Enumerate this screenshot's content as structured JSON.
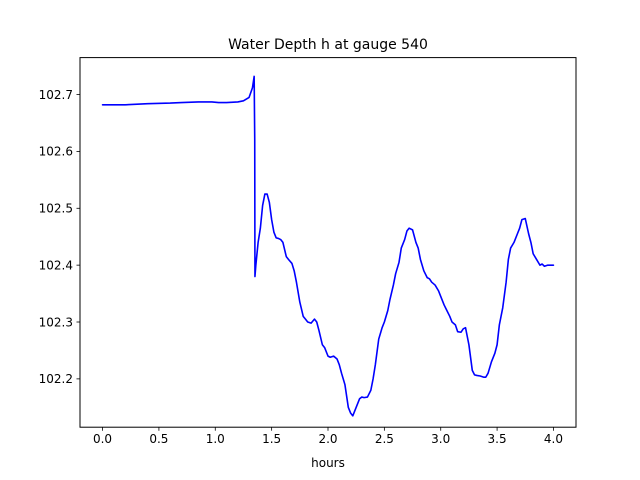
{
  "chart_data": {
    "type": "line",
    "title": "Water Depth h at gauge 540",
    "xlabel": "hours",
    "ylabel": "",
    "xlim": [
      -0.2,
      4.2
    ],
    "ylim": [
      102.115,
      102.765
    ],
    "xticks": [
      0.0,
      0.5,
      1.0,
      1.5,
      2.0,
      2.5,
      3.0,
      3.5,
      4.0
    ],
    "xtick_labels": [
      "0.0",
      "0.5",
      "1.0",
      "1.5",
      "2.0",
      "2.5",
      "3.0",
      "3.5",
      "4.0"
    ],
    "yticks": [
      102.2,
      102.3,
      102.4,
      102.5,
      102.6,
      102.7
    ],
    "ytick_labels": [
      "102.2",
      "102.3",
      "102.4",
      "102.5",
      "102.6",
      "102.7"
    ],
    "grid": false,
    "series": [
      {
        "color": "#0000ff",
        "x": [
          0.0,
          0.2,
          0.4,
          0.6,
          0.7,
          0.85,
          0.97,
          1.03,
          1.1,
          1.2,
          1.25,
          1.3,
          1.33,
          1.345,
          1.35,
          1.352,
          1.36,
          1.38,
          1.4,
          1.42,
          1.44,
          1.46,
          1.48,
          1.5,
          1.52,
          1.54,
          1.56,
          1.58,
          1.6,
          1.63,
          1.65,
          1.68,
          1.7,
          1.72,
          1.75,
          1.78,
          1.8,
          1.82,
          1.85,
          1.88,
          1.9,
          1.92,
          1.95,
          1.97,
          2.0,
          2.02,
          2.05,
          2.08,
          2.1,
          2.12,
          2.15,
          2.18,
          2.2,
          2.22,
          2.25,
          2.28,
          2.3,
          2.32,
          2.35,
          2.38,
          2.4,
          2.42,
          2.45,
          2.48,
          2.5,
          2.53,
          2.55,
          2.58,
          2.6,
          2.63,
          2.65,
          2.68,
          2.7,
          2.72,
          2.75,
          2.78,
          2.8,
          2.82,
          2.85,
          2.88,
          2.9,
          2.92,
          2.95,
          2.98,
          3.0,
          3.03,
          3.05,
          3.08,
          3.1,
          3.13,
          3.15,
          3.18,
          3.2,
          3.22,
          3.25,
          3.28,
          3.3,
          3.32,
          3.35,
          3.38,
          3.4,
          3.42,
          3.45,
          3.48,
          3.5,
          3.52,
          3.55,
          3.58,
          3.6,
          3.62,
          3.65,
          3.68,
          3.7,
          3.72,
          3.75,
          3.78,
          3.8,
          3.82,
          3.85,
          3.88,
          3.9,
          3.92,
          3.95,
          3.98,
          4.0
        ],
        "y": [
          102.682,
          102.682,
          102.684,
          102.685,
          102.686,
          102.687,
          102.687,
          102.686,
          102.686,
          102.687,
          102.689,
          102.695,
          102.712,
          102.732,
          102.62,
          102.38,
          102.4,
          102.44,
          102.465,
          102.505,
          102.525,
          102.525,
          102.51,
          102.48,
          102.458,
          102.448,
          102.447,
          102.445,
          102.44,
          102.415,
          102.41,
          102.403,
          102.39,
          102.37,
          102.335,
          102.31,
          102.305,
          102.3,
          102.298,
          102.305,
          102.3,
          102.285,
          102.26,
          102.255,
          102.24,
          102.238,
          102.24,
          102.235,
          102.225,
          102.21,
          102.19,
          102.15,
          102.14,
          102.135,
          102.15,
          102.165,
          102.168,
          102.167,
          102.168,
          102.18,
          102.2,
          102.225,
          102.27,
          102.29,
          102.3,
          102.32,
          102.34,
          102.365,
          102.385,
          102.405,
          102.43,
          102.445,
          102.46,
          102.465,
          102.462,
          102.44,
          102.43,
          102.41,
          102.39,
          102.378,
          102.376,
          102.37,
          102.365,
          102.355,
          102.345,
          102.33,
          102.322,
          102.31,
          102.3,
          102.295,
          102.283,
          102.282,
          102.288,
          102.29,
          102.26,
          102.215,
          102.207,
          102.206,
          102.205,
          102.203,
          102.203,
          102.21,
          102.23,
          102.245,
          102.26,
          102.295,
          102.325,
          102.37,
          102.41,
          102.43,
          102.44,
          102.455,
          102.465,
          102.48,
          102.482,
          102.455,
          102.44,
          102.42,
          102.41,
          102.4,
          102.402,
          102.398,
          102.4,
          102.4,
          102.4
        ]
      }
    ]
  }
}
